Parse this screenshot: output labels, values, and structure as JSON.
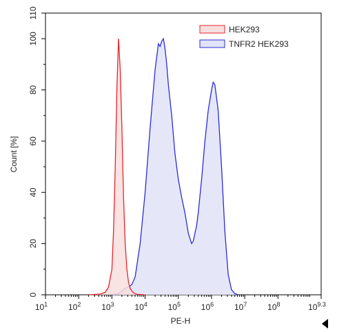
{
  "chart_data": {
    "type": "area",
    "title": "",
    "xlabel": "PE-H",
    "ylabel": "Count [%]",
    "x_scale": "log",
    "xlim": [
      10,
      1995262315
    ],
    "ylim": [
      0,
      110
    ],
    "grid": false,
    "legend_position": "top-right",
    "x_ticks": [
      {
        "base": "10",
        "exp": "1",
        "value": 10
      },
      {
        "base": "10",
        "exp": "2",
        "value": 100
      },
      {
        "base": "10",
        "exp": "3",
        "value": 1000
      },
      {
        "base": "10",
        "exp": "4",
        "value": 10000
      },
      {
        "base": "10",
        "exp": "5",
        "value": 100000
      },
      {
        "base": "10",
        "exp": "6",
        "value": 1000000
      },
      {
        "base": "10",
        "exp": "7",
        "value": 10000000
      },
      {
        "base": "10",
        "exp": "8",
        "value": 100000000
      },
      {
        "base": "10",
        "exp": "9.3",
        "value": 1995262315
      }
    ],
    "y_ticks": [
      "0",
      "20",
      "40",
      "60",
      "80",
      "100",
      "110"
    ],
    "series": [
      {
        "name": "HEK293",
        "stroke": "#e8242a",
        "fill": "#f9dede",
        "x": [
          200,
          450,
          630,
          790,
          1000,
          1120,
          1260,
          1410,
          1580,
          1780,
          2000,
          2240,
          2510,
          2820,
          3160,
          3550,
          3980,
          4470,
          5620,
          10000
        ],
        "y": [
          0,
          0.3,
          1,
          3,
          10,
          25,
          50,
          80,
          100,
          88,
          65,
          38,
          20,
          10,
          5,
          2.5,
          1.5,
          0.8,
          0.2,
          0
        ]
      },
      {
        "name": "TNFR2 HEK293",
        "stroke": "#2b2bd6",
        "fill": "#e1e3f8",
        "x": [
          1000,
          1580,
          2000,
          2510,
          3160,
          3980,
          5010,
          7080,
          10000,
          14100,
          20000,
          25100,
          28200,
          31600,
          35500,
          39800,
          44700,
          50100,
          63100,
          79400,
          100000,
          126000,
          158000,
          200000,
          251000,
          282000,
          316000,
          355000,
          398000,
          501000,
          631000,
          794000,
          1000000,
          1120000,
          1260000,
          1580000,
          2000000,
          2510000,
          3160000,
          3980000,
          5010000,
          6310000
        ],
        "y": [
          0,
          0.5,
          1.5,
          2.5,
          3,
          4,
          7,
          20,
          40,
          65,
          88,
          98,
          97,
          99,
          100,
          96,
          90,
          82,
          70,
          55,
          45,
          38,
          32,
          24,
          20,
          21,
          24,
          27,
          32,
          45,
          60,
          72,
          80,
          83,
          82,
          72,
          50,
          25,
          8,
          2,
          0.5,
          0
        ]
      }
    ]
  }
}
